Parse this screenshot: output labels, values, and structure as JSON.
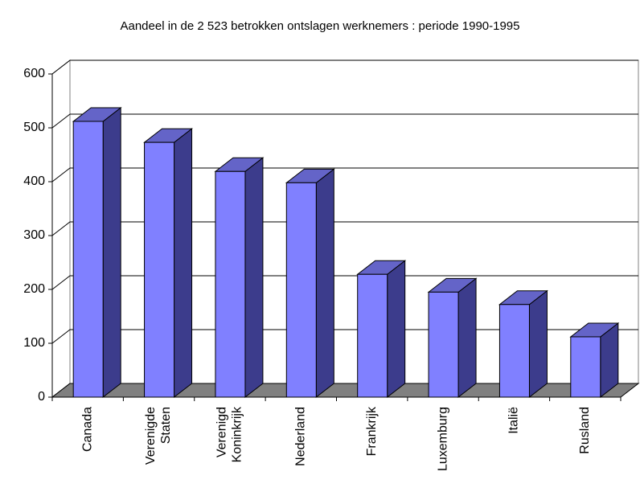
{
  "chart_data": {
    "type": "bar3d",
    "title": "Aandeel in de 2 523 betrokken ontslagen werknemers : periode 1990-1995",
    "categories": [
      "Canada",
      "Verenigde Staten",
      "Verenigd Koninkrijk",
      "Nederland",
      "Frankrijk",
      "Luxemburg",
      "Italië",
      "Rusland"
    ],
    "values": [
      512,
      473,
      419,
      398,
      228,
      195,
      172,
      112
    ],
    "color": "#8080ff",
    "ylim": [
      0,
      600
    ],
    "yticks": [
      0,
      100,
      200,
      300,
      400,
      500,
      600
    ],
    "grid": true
  }
}
